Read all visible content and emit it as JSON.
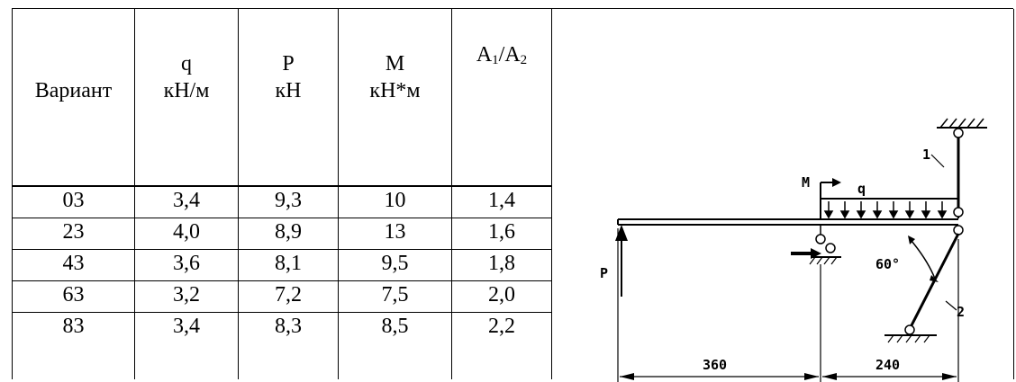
{
  "table": {
    "headers": [
      {
        "line1": "Вариант",
        "line2": ""
      },
      {
        "line1": "q",
        "line2": "кН/м"
      },
      {
        "line1": "P",
        "line2": "кН"
      },
      {
        "line1": "M",
        "line2": "кН*м"
      },
      {
        "line1": "A",
        "sub1": "1",
        "mid": "/A",
        "sub2": "2"
      }
    ],
    "rows": [
      [
        "03",
        "3,4",
        "9,3",
        "10",
        "1,4"
      ],
      [
        "23",
        "4,0",
        "8,9",
        "13",
        "1,6"
      ],
      [
        "43",
        "3,6",
        "8,1",
        "9,5",
        "1,8"
      ],
      [
        "63",
        "3,2",
        "7,2",
        "7,5",
        "2,0"
      ],
      [
        "83",
        "3,4",
        "8,3",
        "8,5",
        "2,2"
      ]
    ]
  },
  "diagram": {
    "label_p": "P",
    "label_m": "M",
    "label_q": "q",
    "label_rod1": "1",
    "label_rod2": "2",
    "angle": "60°",
    "dim_left": "360",
    "dim_right": "240"
  }
}
